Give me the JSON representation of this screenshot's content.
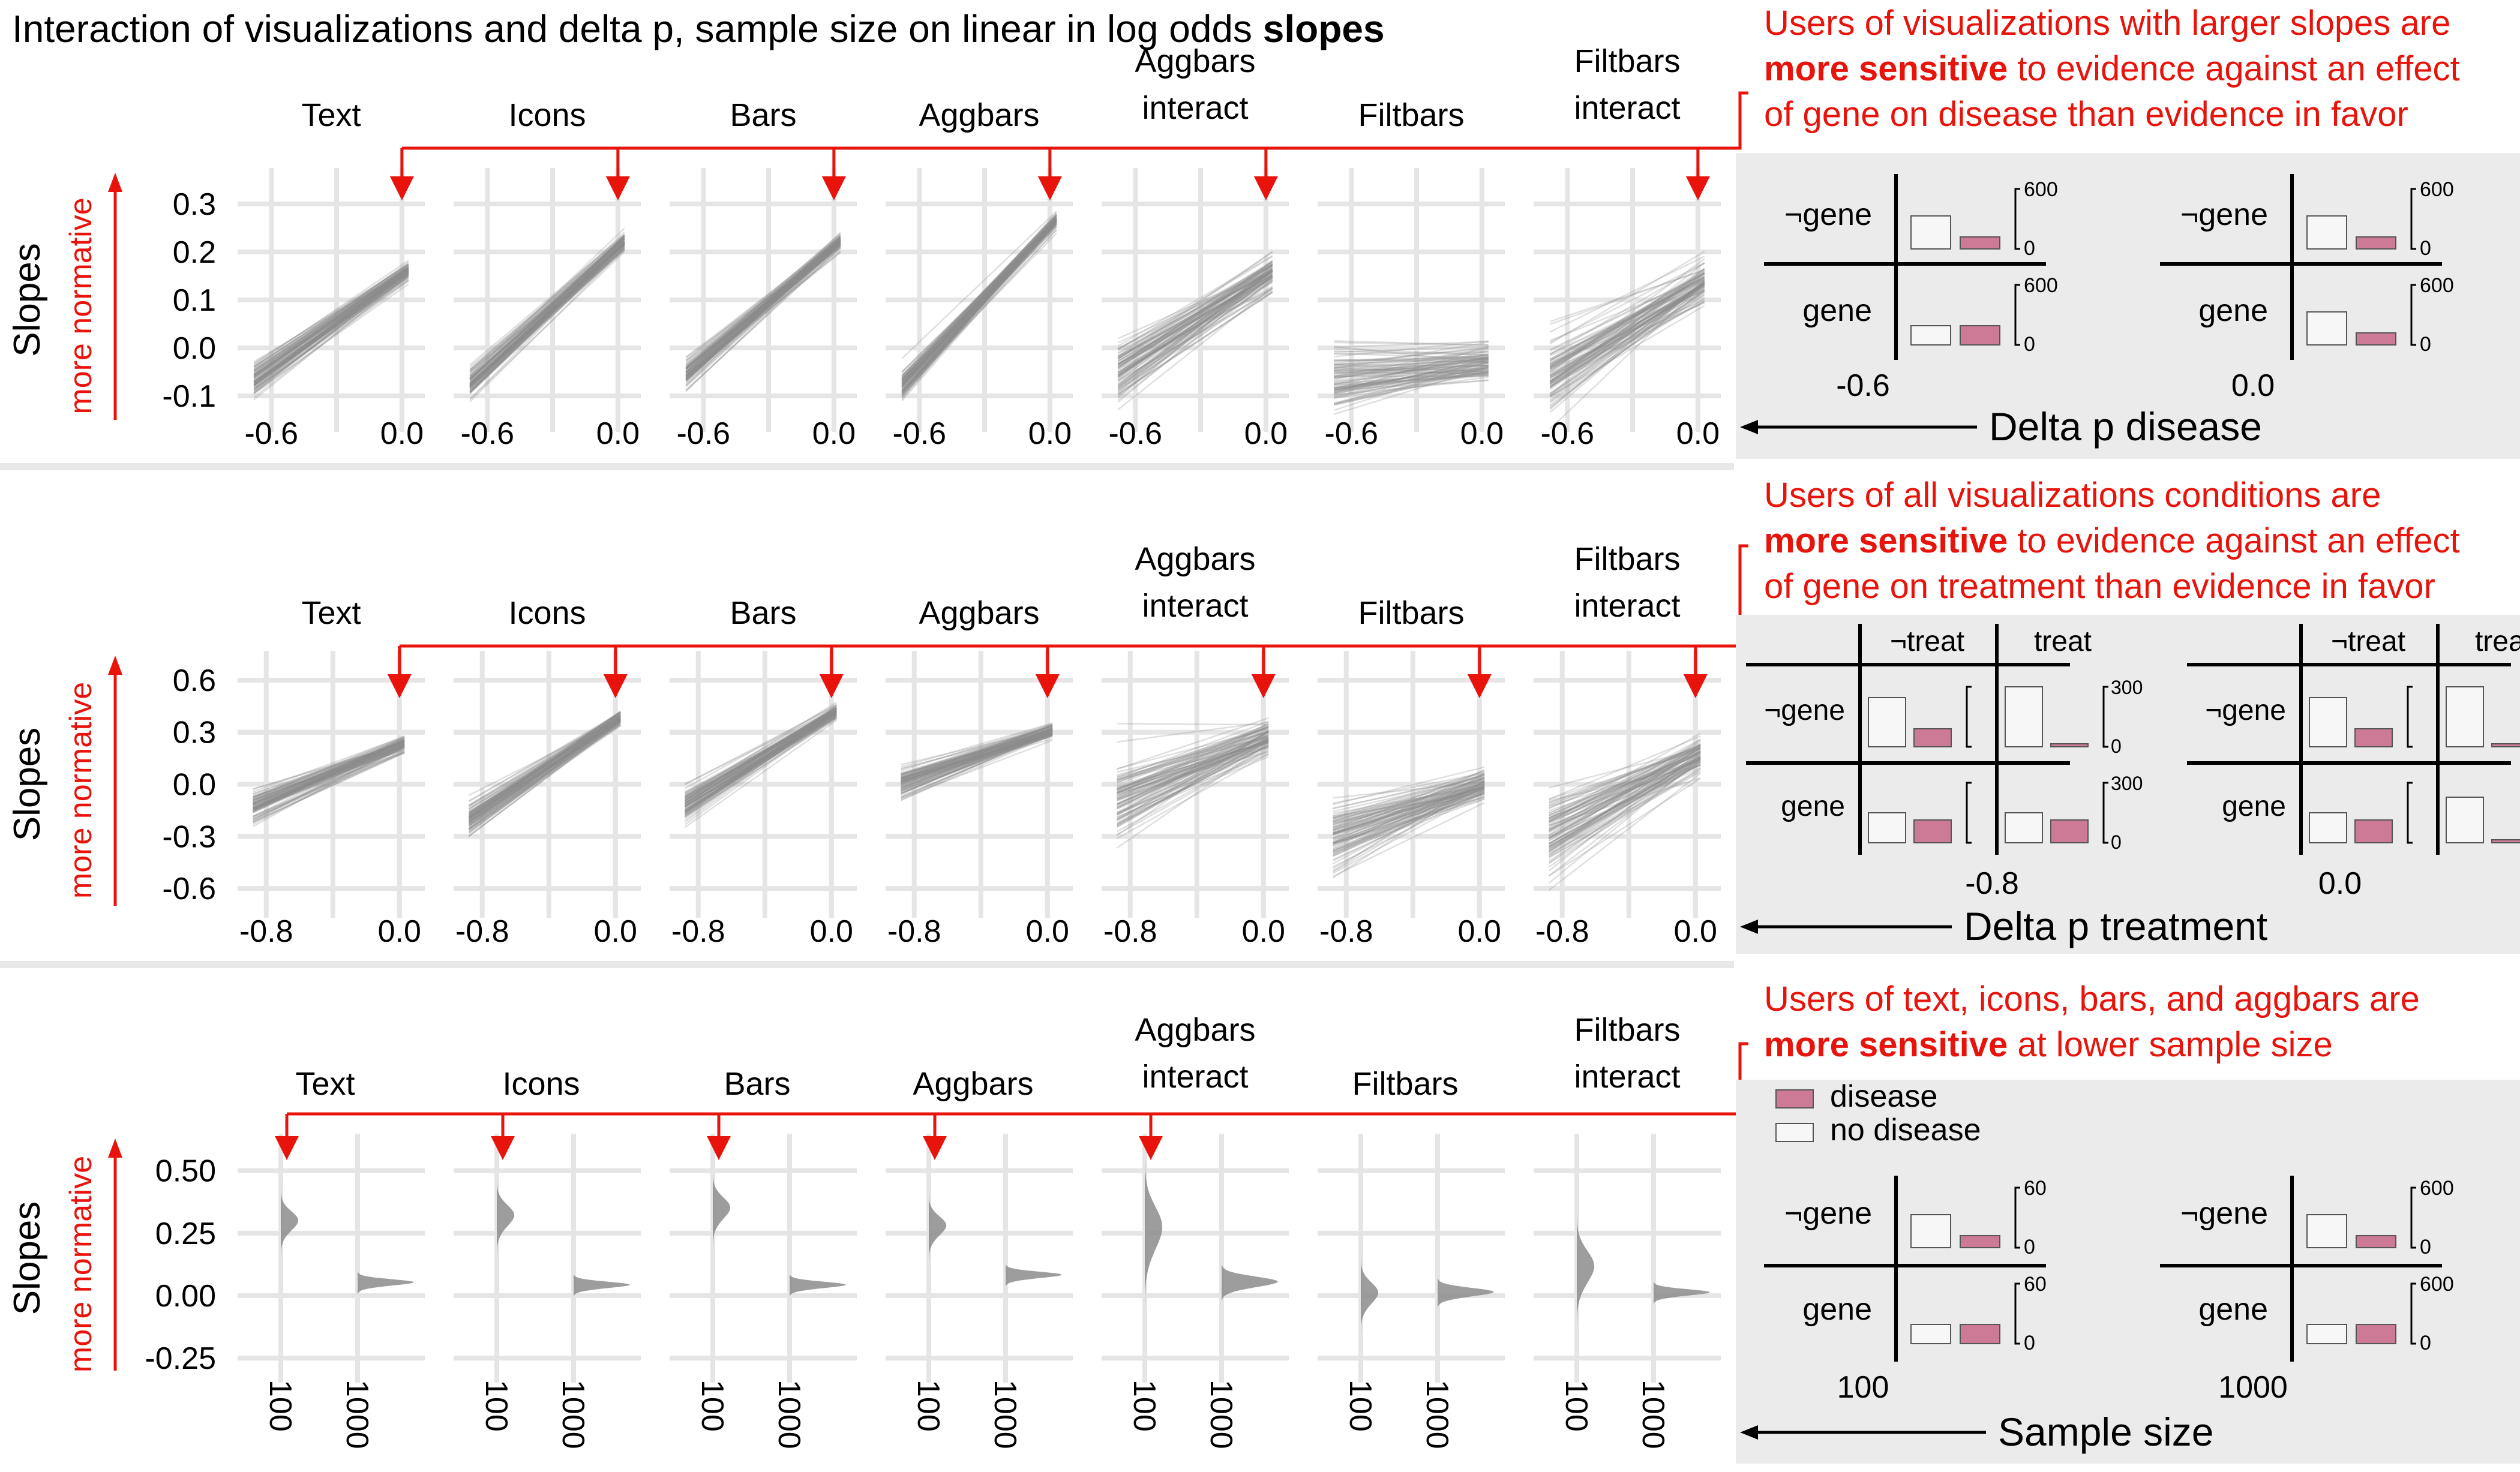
{
  "title": {
    "prefix": "Interaction of visualizations and delta p, sample size on linear in log odds",
    "bold": "slopes"
  },
  "y_axis": {
    "label": "Slopes",
    "normative_label": "more normative"
  },
  "panels": [
    {
      "id": "delta-p-disease",
      "annotation_lines": [
        {
          "text": "Users of visualizations with larger slopes are"
        },
        {
          "bold": "more sensitive",
          "text": " to evidence against an effect"
        },
        {
          "text": "of gene on disease than evidence in favor"
        }
      ]
    },
    {
      "id": "delta-p-treatment",
      "annotation_lines": [
        {
          "text": "Users of all visualizations conditions are"
        },
        {
          "bold": "more sensitive",
          "text": " to evidence against an effect"
        },
        {
          "text": "of gene on treatment than evidence in favor"
        }
      ]
    },
    {
      "id": "sample-size",
      "annotation_lines": [
        {
          "text": "Users of text, icons, bars, and aggbars are"
        },
        {
          "bold": "more sensitive",
          "text": " at lower sample size"
        }
      ]
    }
  ],
  "chart_data": [
    {
      "type": "line",
      "facets": [
        "Text",
        "Icons",
        "Bars",
        "Aggbars",
        "Aggbars interact",
        "Filtbars",
        "Filtbars interact"
      ],
      "x_ticks": [
        "-0.6",
        "0.0"
      ],
      "xlim": [
        -0.7,
        0.05
      ],
      "y_ticks": [
        "0.3",
        "0.2",
        "0.1",
        "0.0",
        "-0.1"
      ],
      "ylim": [
        -0.15,
        0.35
      ],
      "ylabel": "Slopes",
      "highlighted_facets": [
        "Text",
        "Icons",
        "Bars",
        "Aggbars",
        "Aggbars interact",
        "Filtbars interact"
      ],
      "series": [
        {
          "name": "Text",
          "y_at_x_min": -0.04,
          "y_at_0": 0.15
        },
        {
          "name": "Icons",
          "y_at_x_min": -0.04,
          "y_at_0": 0.21
        },
        {
          "name": "Bars",
          "y_at_x_min": -0.02,
          "y_at_0": 0.21
        },
        {
          "name": "Aggbars",
          "y_at_x_min": -0.04,
          "y_at_0": 0.25
        },
        {
          "name": "Aggbars interact",
          "y_at_x_min": -0.03,
          "y_at_0": 0.15
        },
        {
          "name": "Filtbars",
          "y_at_x_min": -0.06,
          "y_at_0": -0.03
        },
        {
          "name": "Filtbars interact",
          "y_at_x_min": -0.04,
          "y_at_0": 0.13
        }
      ],
      "legend_panel": {
        "x_label": "Delta p disease",
        "ticks": [
          "-0.6",
          "0.0"
        ],
        "row_labels": [
          "¬gene",
          "gene"
        ],
        "scale_max": "600",
        "scale_min": "0",
        "groups": [
          {
            "tick": "-0.6",
            "cells": [
              {
                "row": "¬gene",
                "no_disease": 0.55,
                "disease": 0.2
              },
              {
                "row": "gene",
                "no_disease": 0.32,
                "disease": 0.32
              }
            ]
          },
          {
            "tick": "0.0",
            "cells": [
              {
                "row": "¬gene",
                "no_disease": 0.55,
                "disease": 0.2
              },
              {
                "row": "gene",
                "no_disease": 0.55,
                "disease": 0.2
              }
            ]
          }
        ]
      }
    },
    {
      "type": "line",
      "facets": [
        "Text",
        "Icons",
        "Bars",
        "Aggbars",
        "Aggbars interact",
        "Filtbars",
        "Filtbars interact"
      ],
      "x_ticks": [
        "-0.8",
        "0.0"
      ],
      "xlim": [
        -0.9,
        0.08
      ],
      "y_ticks": [
        "0.6",
        "0.3",
        "0.0",
        "-0.3",
        "-0.6"
      ],
      "ylim": [
        -0.7,
        0.7
      ],
      "ylabel": "Slopes",
      "highlighted_facets": [
        "Text",
        "Icons",
        "Bars",
        "Aggbars",
        "Aggbars interact",
        "Filtbars",
        "Filtbars interact"
      ],
      "series": [
        {
          "name": "Text",
          "y_at_x_min": -0.1,
          "y_at_0": 0.22
        },
        {
          "name": "Icons",
          "y_at_x_min": -0.15,
          "y_at_0": 0.36
        },
        {
          "name": "Bars",
          "y_at_x_min": -0.07,
          "y_at_0": 0.4
        },
        {
          "name": "Aggbars",
          "y_at_x_min": 0.03,
          "y_at_0": 0.3
        },
        {
          "name": "Aggbars interact",
          "y_at_x_min": -0.08,
          "y_at_0": 0.25
        },
        {
          "name": "Filtbars",
          "y_at_x_min": -0.26,
          "y_at_0": -0.01
        },
        {
          "name": "Filtbars interact",
          "y_at_x_min": -0.25,
          "y_at_0": 0.16
        }
      ],
      "legend_panel": {
        "x_label": "Delta p treatment",
        "ticks": [
          "-0.8",
          "0.0"
        ],
        "col_labels": [
          "¬treat",
          "treat"
        ],
        "row_labels": [
          "¬gene",
          "gene"
        ],
        "scale_max": "300",
        "scale_min": "0",
        "groups": [
          {
            "tick": "-0.8",
            "cells": [
              {
                "row": "¬gene",
                "col": "¬treat",
                "no_disease": 0.82,
                "disease": 0.3
              },
              {
                "row": "¬gene",
                "col": "treat",
                "no_disease": 1.0,
                "disease": 0.05
              },
              {
                "row": "gene",
                "col": "¬treat",
                "no_disease": 0.5,
                "disease": 0.38
              },
              {
                "row": "gene",
                "col": "treat",
                "no_disease": 0.5,
                "disease": 0.38
              }
            ]
          },
          {
            "tick": "0.0",
            "cells": [
              {
                "row": "¬gene",
                "col": "¬treat",
                "no_disease": 0.82,
                "disease": 0.3
              },
              {
                "row": "¬gene",
                "col": "treat",
                "no_disease": 1.0,
                "disease": 0.05
              },
              {
                "row": "gene",
                "col": "¬treat",
                "no_disease": 0.5,
                "disease": 0.38
              },
              {
                "row": "gene",
                "col": "treat",
                "no_disease": 0.76,
                "disease": 0.05
              }
            ]
          }
        ]
      }
    },
    {
      "type": "area",
      "subtype": "half-violin",
      "facets": [
        "Text",
        "Icons",
        "Bars",
        "Aggbars",
        "Aggbars interact",
        "Filtbars",
        "Filtbars interact"
      ],
      "x_ticks": [
        "100",
        "1000"
      ],
      "y_ticks": [
        "0.50",
        "0.25",
        "0.00",
        "-0.25"
      ],
      "ylim": [
        -0.3,
        0.6
      ],
      "ylabel": "Slopes",
      "highlighted_facets": [
        "Text",
        "Icons",
        "Bars",
        "Aggbars",
        "Aggbars interact"
      ],
      "series": [
        {
          "name": "Text",
          "n100_center": 0.29,
          "n100_spread": 0.09,
          "n1000_center": 0.05,
          "n1000_spread": 0.03
        },
        {
          "name": "Icons",
          "n100_center": 0.31,
          "n100_spread": 0.1,
          "n1000_center": 0.04,
          "n1000_spread": 0.03
        },
        {
          "name": "Bars",
          "n100_center": 0.34,
          "n100_spread": 0.1,
          "n1000_center": 0.04,
          "n1000_spread": 0.03
        },
        {
          "name": "Aggbars",
          "n100_center": 0.27,
          "n100_spread": 0.09,
          "n1000_center": 0.08,
          "n1000_spread": 0.03
        },
        {
          "name": "Aggbars interact",
          "n100_center": 0.25,
          "n100_spread": 0.2,
          "n1000_center": 0.05,
          "n1000_spread": 0.05
        },
        {
          "name": "Filtbars",
          "n100_center": 0.0,
          "n100_spread": 0.1,
          "n1000_center": 0.01,
          "n1000_spread": 0.04
        },
        {
          "name": "Filtbars interact",
          "n100_center": 0.1,
          "n100_spread": 0.15,
          "n1000_center": 0.01,
          "n1000_spread": 0.03
        }
      ],
      "legend_panel": {
        "x_label": "Sample size",
        "ticks": [
          "100",
          "1000"
        ],
        "legend": [
          {
            "name": "disease",
            "color": "#cd7a97"
          },
          {
            "name": "no disease",
            "color": "#f7f7f7"
          }
        ],
        "row_labels": [
          "¬gene",
          "gene"
        ],
        "groups": [
          {
            "tick": "100",
            "scale_max": "60",
            "scale_min": "0",
            "cells": [
              {
                "row": "¬gene",
                "no_disease": 0.55,
                "disease": 0.2
              },
              {
                "row": "gene",
                "no_disease": 0.32,
                "disease": 0.32
              }
            ]
          },
          {
            "tick": "1000",
            "scale_max": "600",
            "scale_min": "0",
            "cells": [
              {
                "row": "¬gene",
                "no_disease": 0.55,
                "disease": 0.2
              },
              {
                "row": "gene",
                "no_disease": 0.32,
                "disease": 0.32
              }
            ]
          }
        ]
      }
    }
  ],
  "colors": {
    "annotation": "#e8140c",
    "lines": "#8c8c8c",
    "grid": "#e5e5e5",
    "legend_bg": "#ebebeb",
    "disease": "#cd7a97",
    "no_disease": "#f7f7f7"
  }
}
